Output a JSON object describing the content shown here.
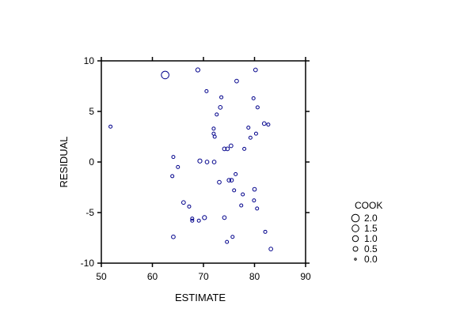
{
  "chart_data": {
    "type": "scatter",
    "xlabel": "ESTIMATE",
    "ylabel": "RESIDUAL",
    "xlim": [
      50,
      90
    ],
    "ylim": [
      -10,
      10
    ],
    "xticks": [
      "50",
      "60",
      "70",
      "80",
      "90"
    ],
    "yticks": [
      "10",
      "5",
      "0",
      "-5",
      "-10"
    ],
    "grid": false,
    "frame": "box",
    "marker": "open-circle",
    "marker_size_variable": "COOK",
    "colors": {
      "points": "#00008b",
      "axes": "#000000"
    },
    "legend": {
      "title": "COOK",
      "placement": "right",
      "entries": [
        {
          "label": "2.0",
          "value": 2.0
        },
        {
          "label": "1.5",
          "value": 1.5
        },
        {
          "label": "1.0",
          "value": 1.0
        },
        {
          "label": "0.5",
          "value": 0.5
        },
        {
          "label": "0.0",
          "value": 0.0
        }
      ]
    },
    "points": [
      {
        "x": 51.8,
        "y": 3.5,
        "cook": 0.1
      },
      {
        "x": 62.5,
        "y": 8.6,
        "cook": 2.0
      },
      {
        "x": 63.9,
        "y": -1.4,
        "cook": 0.1
      },
      {
        "x": 64.1,
        "y": 0.5,
        "cook": 0.1
      },
      {
        "x": 64.1,
        "y": -7.4,
        "cook": 0.2
      },
      {
        "x": 65.0,
        "y": -0.5,
        "cook": 0.1
      },
      {
        "x": 66.1,
        "y": -4.0,
        "cook": 0.2
      },
      {
        "x": 67.2,
        "y": -4.4,
        "cook": 0.1
      },
      {
        "x": 67.8,
        "y": -5.8,
        "cook": 0.1
      },
      {
        "x": 67.8,
        "y": -5.6,
        "cook": 0.1
      },
      {
        "x": 68.9,
        "y": 9.1,
        "cook": 0.3
      },
      {
        "x": 69.3,
        "y": 0.1,
        "cook": 0.3
      },
      {
        "x": 69.1,
        "y": -5.8,
        "cook": 0.1
      },
      {
        "x": 70.2,
        "y": -5.5,
        "cook": 0.3
      },
      {
        "x": 70.6,
        "y": 7.0,
        "cook": 0.1
      },
      {
        "x": 70.7,
        "y": 0.0,
        "cook": 0.2
      },
      {
        "x": 72.0,
        "y": 3.3,
        "cook": 0.1
      },
      {
        "x": 72.0,
        "y": 2.8,
        "cook": 0.1
      },
      {
        "x": 72.2,
        "y": 2.5,
        "cook": 0.1
      },
      {
        "x": 72.1,
        "y": 0.0,
        "cook": 0.2
      },
      {
        "x": 72.6,
        "y": 4.7,
        "cook": 0.1
      },
      {
        "x": 73.3,
        "y": 5.4,
        "cook": 0.2
      },
      {
        "x": 73.5,
        "y": 6.4,
        "cook": 0.1
      },
      {
        "x": 73.1,
        "y": -2.0,
        "cook": 0.2
      },
      {
        "x": 74.1,
        "y": 1.3,
        "cook": 0.2
      },
      {
        "x": 74.1,
        "y": -5.5,
        "cook": 0.2
      },
      {
        "x": 74.6,
        "y": -7.9,
        "cook": 0.1
      },
      {
        "x": 74.7,
        "y": 1.3,
        "cook": 0.2
      },
      {
        "x": 75.0,
        "y": -1.8,
        "cook": 0.2
      },
      {
        "x": 75.4,
        "y": 1.6,
        "cook": 0.2
      },
      {
        "x": 75.5,
        "y": -1.8,
        "cook": 0.2
      },
      {
        "x": 75.7,
        "y": -7.4,
        "cook": 0.1
      },
      {
        "x": 76.0,
        "y": -2.8,
        "cook": 0.1
      },
      {
        "x": 76.3,
        "y": -1.2,
        "cook": 0.1
      },
      {
        "x": 76.5,
        "y": 8.0,
        "cook": 0.2
      },
      {
        "x": 77.4,
        "y": -4.3,
        "cook": 0.1
      },
      {
        "x": 77.7,
        "y": -3.2,
        "cook": 0.1
      },
      {
        "x": 78.0,
        "y": 1.3,
        "cook": 0.1
      },
      {
        "x": 78.8,
        "y": 3.4,
        "cook": 0.1
      },
      {
        "x": 79.2,
        "y": 2.4,
        "cook": 0.1
      },
      {
        "x": 79.8,
        "y": 6.3,
        "cook": 0.1
      },
      {
        "x": 79.9,
        "y": -3.8,
        "cook": 0.1
      },
      {
        "x": 80.0,
        "y": -2.7,
        "cook": 0.2
      },
      {
        "x": 80.2,
        "y": 9.1,
        "cook": 0.2
      },
      {
        "x": 80.3,
        "y": 2.8,
        "cook": 0.1
      },
      {
        "x": 80.5,
        "y": -4.6,
        "cook": 0.1
      },
      {
        "x": 80.6,
        "y": 5.4,
        "cook": 0.1
      },
      {
        "x": 81.9,
        "y": 3.8,
        "cook": 0.2
      },
      {
        "x": 82.1,
        "y": -6.9,
        "cook": 0.1
      },
      {
        "x": 82.7,
        "y": 3.7,
        "cook": 0.1
      },
      {
        "x": 83.2,
        "y": -8.6,
        "cook": 0.2
      }
    ]
  }
}
